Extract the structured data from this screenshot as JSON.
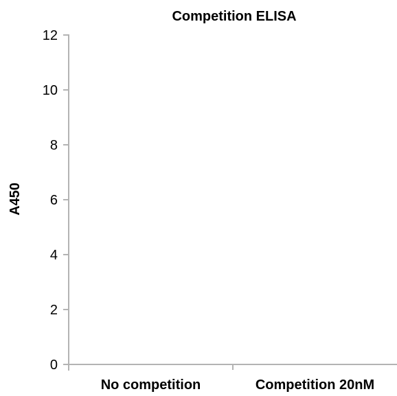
{
  "chart_data": {
    "type": "bar",
    "title": "Competition ELISA",
    "ylabel": "A450",
    "xlabel": "",
    "categories": [
      "No competition",
      "Competition 20nM"
    ],
    "series": [
      {
        "values": [
          null,
          null
        ]
      }
    ],
    "ylim": [
      0,
      12
    ],
    "yticks": [
      0,
      2,
      4,
      6,
      8,
      10,
      12
    ],
    "grid": false,
    "legend": "none",
    "axis_color": "#b3b3b3",
    "text_color": "#000000"
  }
}
